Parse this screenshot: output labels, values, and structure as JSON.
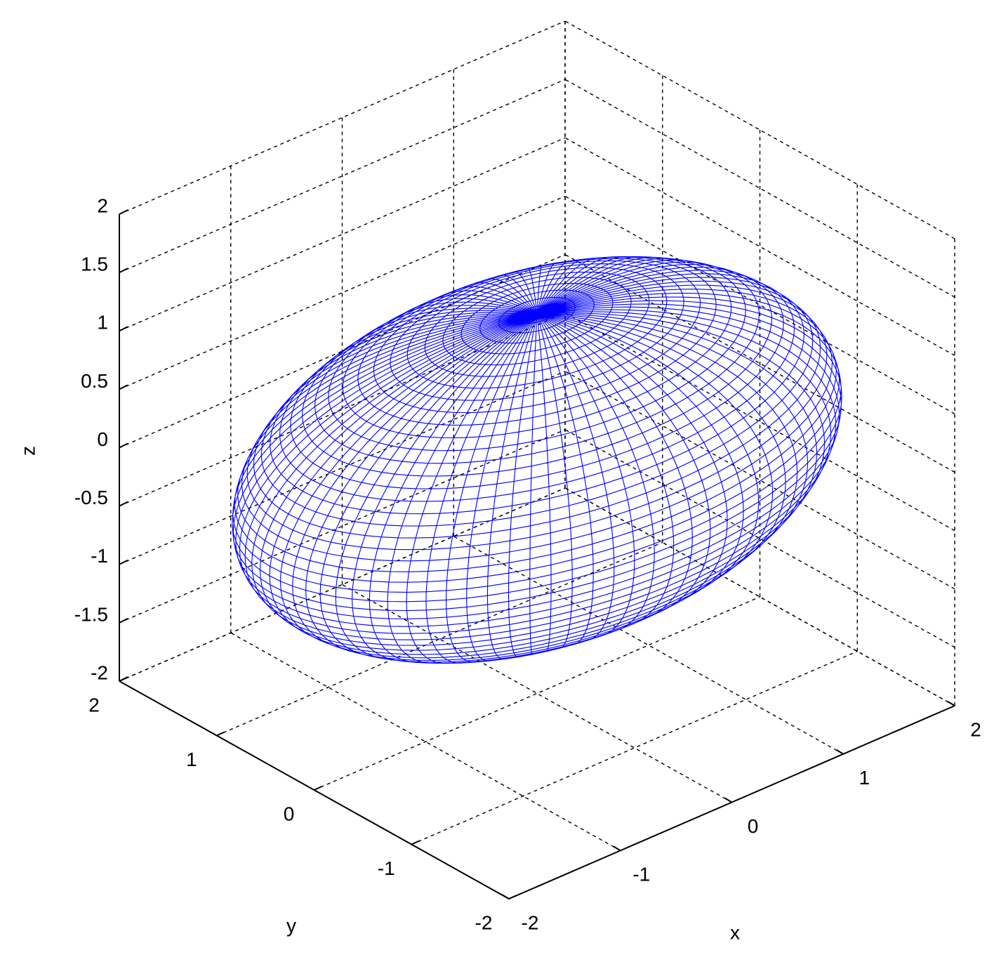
{
  "chart_data": {
    "type": "mesh3d",
    "xlabel": "x",
    "ylabel": "y",
    "zlabel": "z",
    "xlim": [
      -2,
      2
    ],
    "ylim": [
      -2,
      2
    ],
    "zlim": [
      -2,
      2
    ],
    "xticks": [
      -2,
      -1,
      0,
      1,
      2
    ],
    "yticks": [
      -2,
      -1,
      0,
      1,
      2
    ],
    "zticks": [
      -2,
      -1.5,
      -1,
      -0.5,
      0,
      0.5,
      1,
      1.5,
      2
    ],
    "surface": {
      "shape": "ellipsoid",
      "center": [
        0,
        0,
        0
      ],
      "radii": [
        2.4,
        1.5,
        1.25
      ]
    },
    "color": "#0000ff",
    "grid": true
  }
}
